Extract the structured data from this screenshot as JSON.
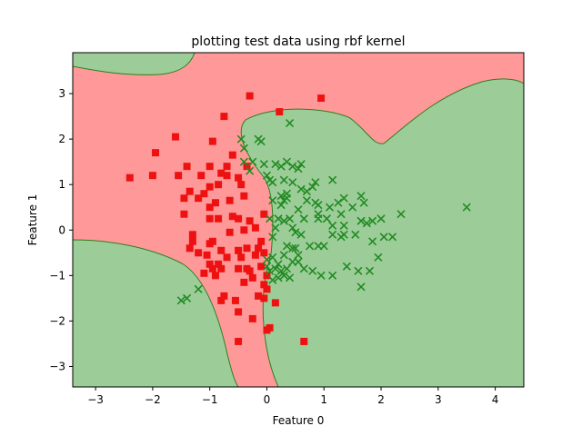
{
  "chart_data": {
    "type": "scatter",
    "title": "plotting test data using rbf kernel",
    "xlabel": "Feature 0",
    "ylabel": "Feature 1",
    "xlim": [
      -3.4,
      4.5
    ],
    "ylim": [
      -3.45,
      3.9
    ],
    "xticks": [
      -3,
      -2,
      -1,
      0,
      1,
      2,
      3,
      4
    ],
    "yticks": [
      -3,
      -2,
      -1,
      0,
      1,
      2,
      3
    ],
    "xtick_labels": [
      "−3",
      "−2",
      "−1",
      "0",
      "1",
      "2",
      "3",
      "4"
    ],
    "ytick_labels": [
      "−3",
      "−2",
      "−1",
      "0",
      "1",
      "2",
      "3"
    ],
    "grid": false,
    "region_colors": {
      "class_0": "#ff9999",
      "class_1": "#9ccd99",
      "boundary": "#2e7d1e"
    },
    "series": [
      {
        "class": "square",
        "marker": "square",
        "color": "#ee1111",
        "points": [
          [
            -0.3,
            2.95
          ],
          [
            0.95,
            2.9
          ],
          [
            0.22,
            2.6
          ],
          [
            -0.75,
            2.5
          ],
          [
            -1.6,
            2.05
          ],
          [
            -0.95,
            1.95
          ],
          [
            -1.95,
            1.7
          ],
          [
            -0.6,
            1.65
          ],
          [
            -1.4,
            1.4
          ],
          [
            -1.0,
            1.4
          ],
          [
            -0.7,
            1.4
          ],
          [
            -0.35,
            1.4
          ],
          [
            -0.7,
            1.2
          ],
          [
            -0.5,
            1.15
          ],
          [
            -2.4,
            1.15
          ],
          [
            -2.0,
            1.2
          ],
          [
            -1.55,
            1.2
          ],
          [
            -1.15,
            1.2
          ],
          [
            -0.85,
            1.0
          ],
          [
            -0.45,
            1.0
          ],
          [
            -0.8,
            1.25
          ],
          [
            -1.35,
            0.85
          ],
          [
            -1.45,
            0.7
          ],
          [
            -1.2,
            0.7
          ],
          [
            -1.0,
            0.95
          ],
          [
            -1.1,
            0.8
          ],
          [
            -0.65,
            0.65
          ],
          [
            -0.4,
            0.75
          ],
          [
            -0.9,
            0.6
          ],
          [
            -1.45,
            0.35
          ],
          [
            -1.0,
            0.5
          ],
          [
            -0.85,
            0.25
          ],
          [
            -1.0,
            0.25
          ],
          [
            -0.6,
            0.3
          ],
          [
            -0.5,
            0.25
          ],
          [
            -0.3,
            0.2
          ],
          [
            -0.05,
            0.35
          ],
          [
            -0.2,
            0.05
          ],
          [
            -0.4,
            0.0
          ],
          [
            -0.65,
            -0.05
          ],
          [
            -1.3,
            -0.1
          ],
          [
            -1.3,
            -0.25
          ],
          [
            -1.35,
            -0.4
          ],
          [
            -1.0,
            -0.3
          ],
          [
            -0.95,
            -0.25
          ],
          [
            -0.8,
            -0.45
          ],
          [
            -0.5,
            -0.45
          ],
          [
            -0.35,
            -0.4
          ],
          [
            -0.2,
            -0.55
          ],
          [
            -0.05,
            -0.5
          ],
          [
            -0.45,
            -0.6
          ],
          [
            -1.05,
            -0.55
          ],
          [
            -1.0,
            -0.75
          ],
          [
            -0.95,
            -0.85
          ],
          [
            -0.8,
            -0.85
          ],
          [
            -0.5,
            -0.85
          ],
          [
            -0.35,
            -0.85
          ],
          [
            -0.1,
            -0.8
          ],
          [
            -0.25,
            -1.05
          ],
          [
            -0.05,
            -1.2
          ],
          [
            -0.4,
            -1.15
          ],
          [
            0.0,
            -1.3
          ],
          [
            -0.15,
            -1.45
          ],
          [
            -0.05,
            -1.5
          ],
          [
            0.15,
            -1.6
          ],
          [
            -0.75,
            -1.45
          ],
          [
            -0.55,
            -1.55
          ],
          [
            -0.5,
            -1.8
          ],
          [
            -0.8,
            -1.55
          ],
          [
            -0.25,
            -1.95
          ],
          [
            0.05,
            -2.15
          ],
          [
            -0.5,
            -2.45
          ],
          [
            0.65,
            -2.45
          ],
          [
            -0.9,
            -1.0
          ],
          [
            -1.1,
            -0.95
          ],
          [
            -1.2,
            -0.5
          ],
          [
            -0.1,
            -0.25
          ],
          [
            -0.3,
            -0.9
          ],
          [
            0.0,
            -1.0
          ],
          [
            -0.15,
            -0.4
          ],
          [
            -0.7,
            -0.6
          ],
          [
            -0.85,
            -0.75
          ],
          [
            0.0,
            -2.2
          ]
        ]
      },
      {
        "class": "cross",
        "marker": "x",
        "color": "#228b22",
        "points": [
          [
            0.4,
            2.35
          ],
          [
            -0.45,
            2.0
          ],
          [
            -0.15,
            2.0
          ],
          [
            -0.1,
            1.95
          ],
          [
            -0.4,
            1.8
          ],
          [
            -0.4,
            1.5
          ],
          [
            -0.25,
            1.5
          ],
          [
            -0.05,
            1.45
          ],
          [
            0.15,
            1.45
          ],
          [
            0.25,
            1.4
          ],
          [
            0.35,
            1.5
          ],
          [
            0.45,
            1.4
          ],
          [
            0.55,
            1.35
          ],
          [
            0.6,
            1.45
          ],
          [
            -0.3,
            1.3
          ],
          [
            0.0,
            1.2
          ],
          [
            0.05,
            1.1
          ],
          [
            0.1,
            1.05
          ],
          [
            0.3,
            1.1
          ],
          [
            0.45,
            1.05
          ],
          [
            1.15,
            1.1
          ],
          [
            0.85,
            1.05
          ],
          [
            0.8,
            0.95
          ],
          [
            0.7,
            0.85
          ],
          [
            0.6,
            0.9
          ],
          [
            0.35,
            0.8
          ],
          [
            0.25,
            0.75
          ],
          [
            0.35,
            0.7
          ],
          [
            0.1,
            0.65
          ],
          [
            0.3,
            0.65
          ],
          [
            0.25,
            0.55
          ],
          [
            0.85,
            0.6
          ],
          [
            0.9,
            0.55
          ],
          [
            0.7,
            0.65
          ],
          [
            1.35,
            0.7
          ],
          [
            1.25,
            0.6
          ],
          [
            1.5,
            0.5
          ],
          [
            1.7,
            0.6
          ],
          [
            1.65,
            0.75
          ],
          [
            1.1,
            0.5
          ],
          [
            0.55,
            0.45
          ],
          [
            0.9,
            0.35
          ],
          [
            0.9,
            0.25
          ],
          [
            1.05,
            0.25
          ],
          [
            0.65,
            0.25
          ],
          [
            0.4,
            0.25
          ],
          [
            0.3,
            0.2
          ],
          [
            0.2,
            0.25
          ],
          [
            0.05,
            0.25
          ],
          [
            0.15,
            0.05
          ],
          [
            0.45,
            0.05
          ],
          [
            1.3,
            0.35
          ],
          [
            1.15,
            0.1
          ],
          [
            1.35,
            0.1
          ],
          [
            1.65,
            0.2
          ],
          [
            1.75,
            0.15
          ],
          [
            1.85,
            0.2
          ],
          [
            2.0,
            0.25
          ],
          [
            2.35,
            0.35
          ],
          [
            3.5,
            0.5
          ],
          [
            1.15,
            -0.1
          ],
          [
            1.3,
            -0.15
          ],
          [
            1.35,
            -0.1
          ],
          [
            1.55,
            -0.1
          ],
          [
            1.85,
            -0.25
          ],
          [
            2.05,
            -0.15
          ],
          [
            2.2,
            -0.15
          ],
          [
            0.5,
            -0.05
          ],
          [
            0.6,
            -0.1
          ],
          [
            0.1,
            -0.15
          ],
          [
            0.35,
            -0.35
          ],
          [
            0.45,
            -0.4
          ],
          [
            0.5,
            -0.4
          ],
          [
            0.3,
            -0.55
          ],
          [
            0.55,
            -0.55
          ],
          [
            0.75,
            -0.35
          ],
          [
            0.9,
            -0.35
          ],
          [
            1.0,
            -0.35
          ],
          [
            0.1,
            -0.6
          ],
          [
            0.2,
            -0.75
          ],
          [
            0.15,
            -0.85
          ],
          [
            0.0,
            -0.65
          ],
          [
            0.0,
            -0.8
          ],
          [
            0.05,
            -0.9
          ],
          [
            0.25,
            -0.9
          ],
          [
            0.35,
            -0.85
          ],
          [
            0.45,
            -0.7
          ],
          [
            0.55,
            -0.7
          ],
          [
            0.65,
            -0.85
          ],
          [
            0.8,
            -0.9
          ],
          [
            0.95,
            -1.0
          ],
          [
            1.15,
            -1.0
          ],
          [
            1.4,
            -0.8
          ],
          [
            1.6,
            -0.9
          ],
          [
            1.8,
            -0.9
          ],
          [
            1.95,
            -0.6
          ],
          [
            1.65,
            -1.25
          ],
          [
            0.3,
            -1.0
          ],
          [
            0.2,
            -1.05
          ],
          [
            0.1,
            -1.1
          ],
          [
            0.4,
            -1.05
          ],
          [
            -1.5,
            -1.55
          ],
          [
            -1.4,
            -1.5
          ],
          [
            -1.2,
            -1.3
          ]
        ]
      }
    ]
  }
}
